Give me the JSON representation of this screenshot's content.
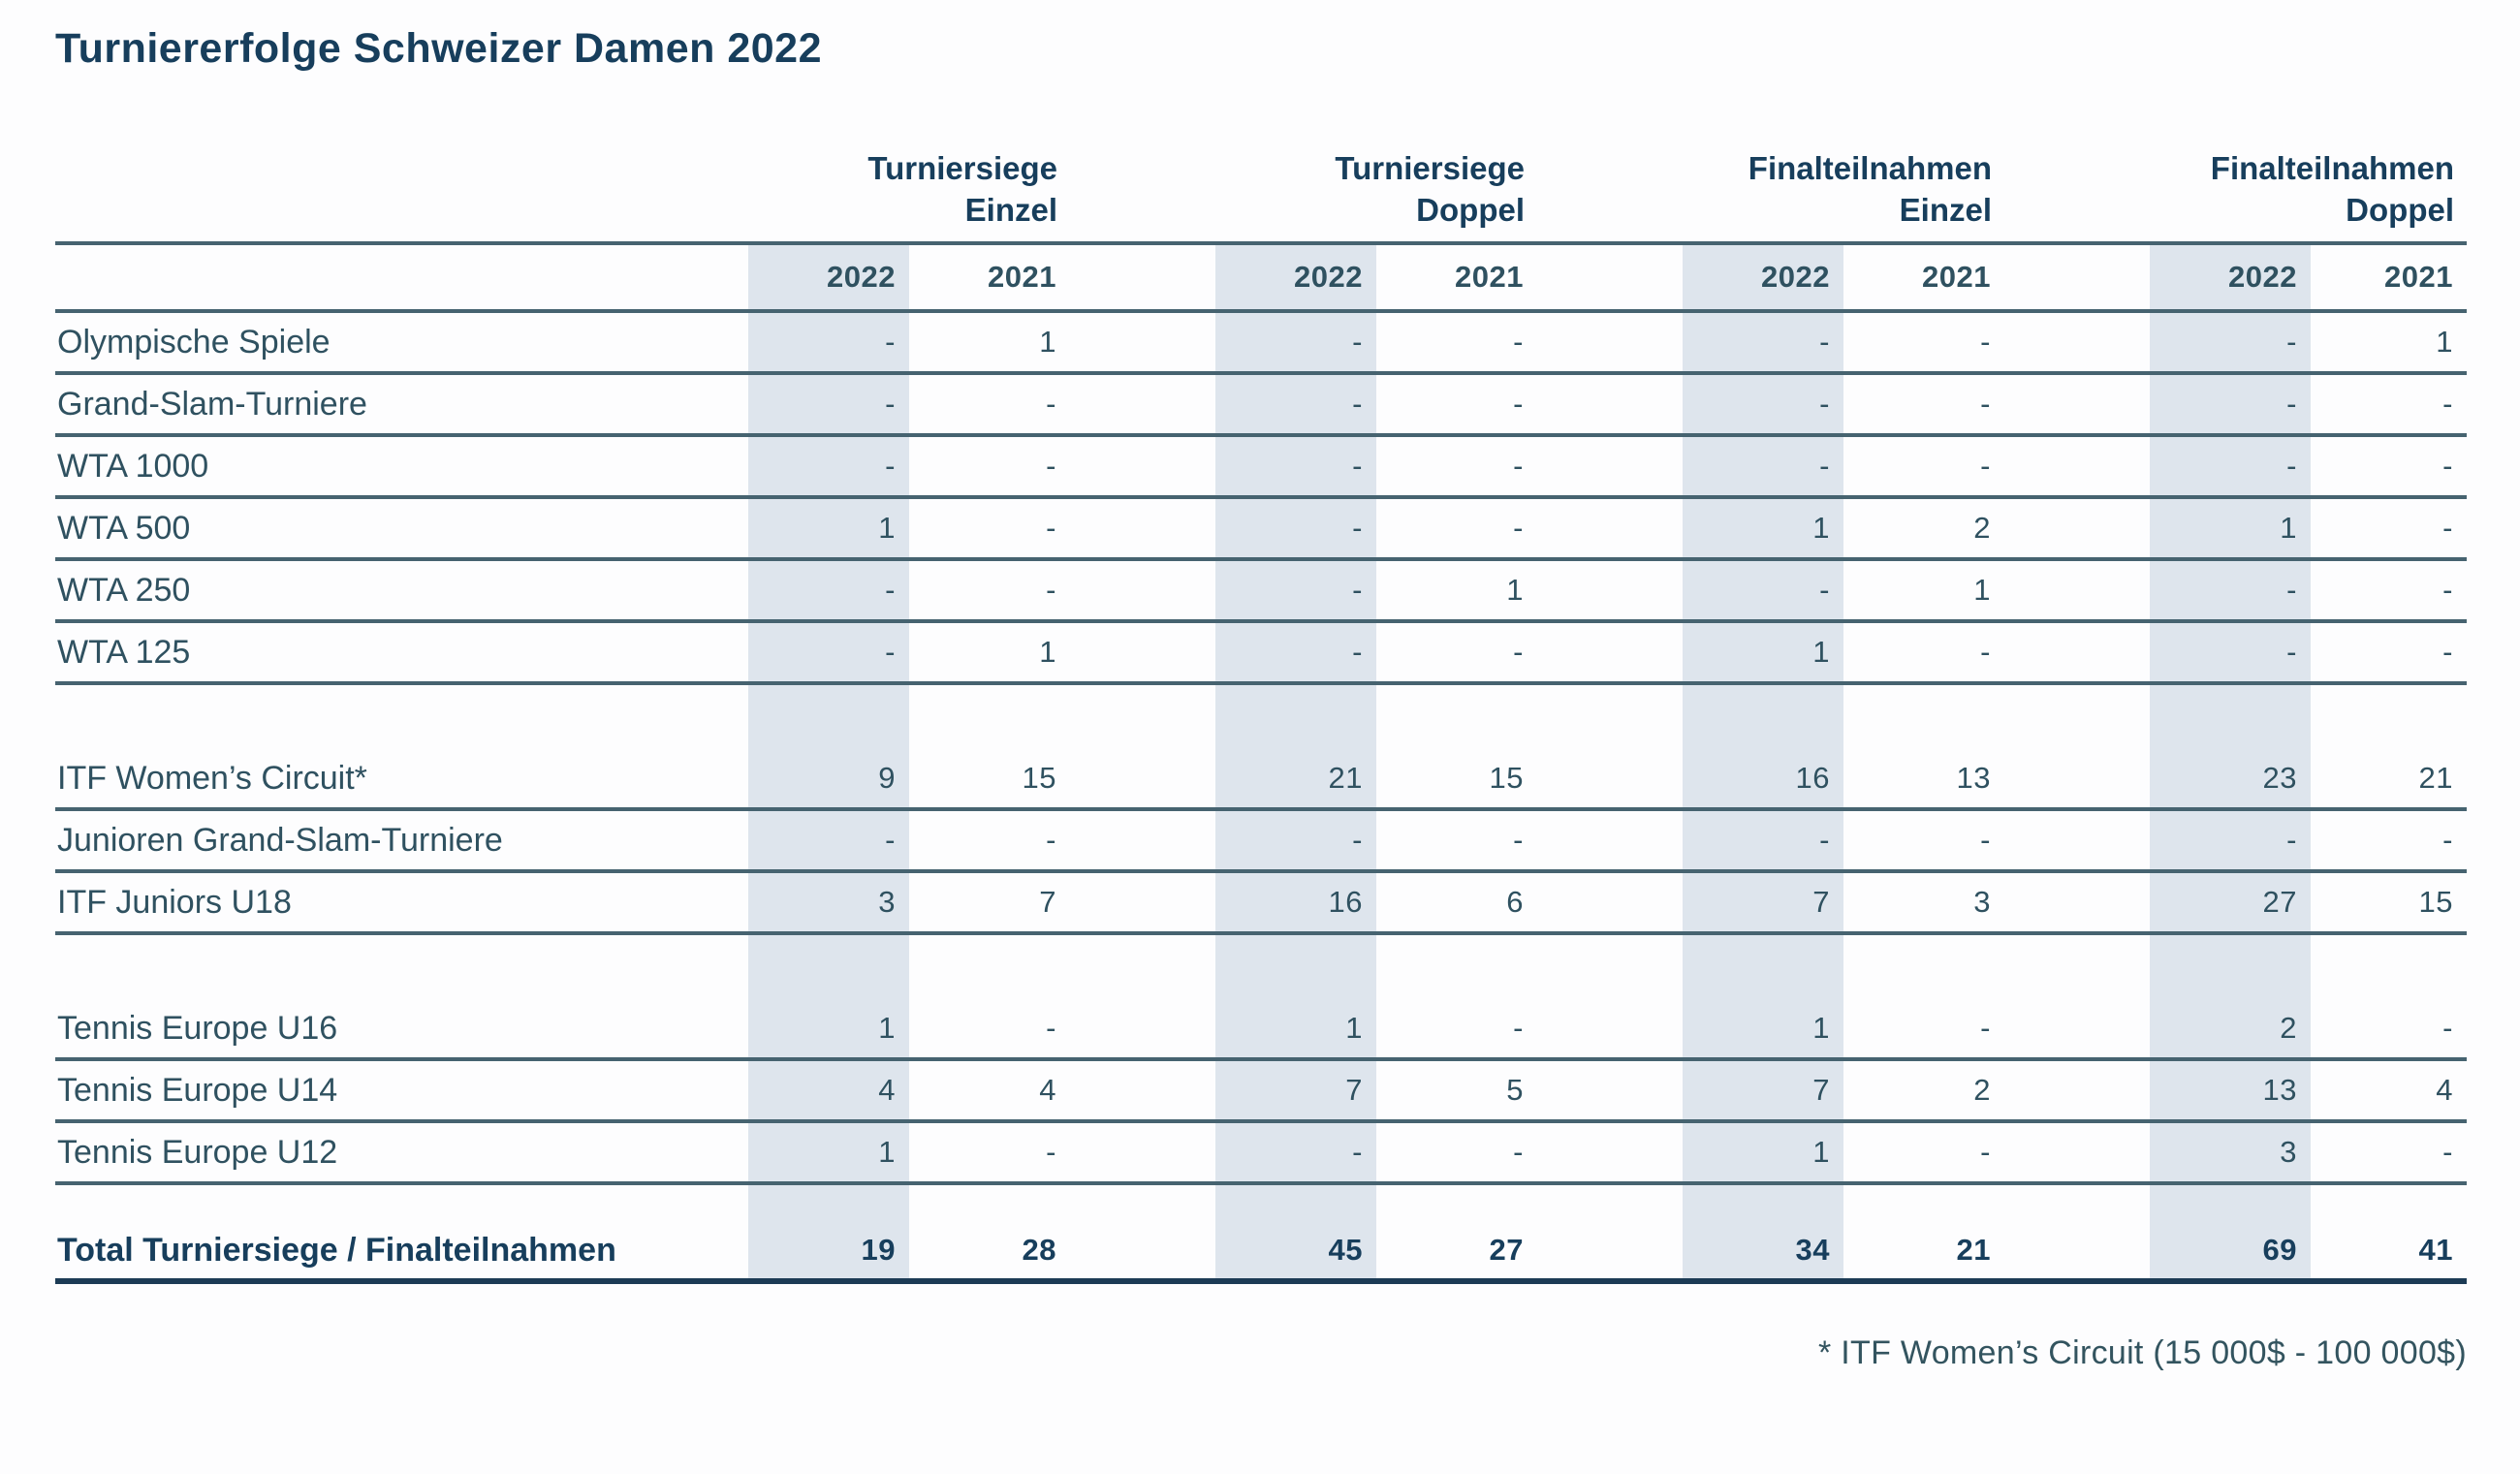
{
  "title": "Turniererfolge Schweizer Damen 2022",
  "colors": {
    "accent": "#173e5c",
    "text": "#2f5160",
    "rule_line": "#466370",
    "total_rule_line": "#1c3b55",
    "shaded_band": "#dee5ed",
    "background": "#fdfdfe"
  },
  "table": {
    "column_groups": [
      {
        "line1": "Turniersiege",
        "line2": "Einzel"
      },
      {
        "line1": "Turniersiege",
        "line2": "Doppel"
      },
      {
        "line1": "Finalteilnahmen",
        "line2": "Einzel"
      },
      {
        "line1": "Finalteilnahmen",
        "line2": "Doppel"
      }
    ],
    "year_headers": [
      "2022",
      "2021",
      "2022",
      "2021",
      "2022",
      "2021",
      "2022",
      "2021"
    ],
    "rows": [
      {
        "label": "Olympische Spiele",
        "values": [
          "-",
          "1",
          "-",
          "-",
          "-",
          "-",
          "-",
          "1"
        ]
      },
      {
        "label": "Grand-Slam-Turniere",
        "values": [
          "-",
          "-",
          "-",
          "-",
          "-",
          "-",
          "-",
          "-"
        ]
      },
      {
        "label": "WTA 1000",
        "values": [
          "-",
          "-",
          "-",
          "-",
          "-",
          "-",
          "-",
          "-"
        ]
      },
      {
        "label": "WTA 500",
        "values": [
          "1",
          "-",
          "-",
          "-",
          "1",
          "2",
          "1",
          "-"
        ]
      },
      {
        "label": "WTA 250",
        "values": [
          "-",
          "-",
          "-",
          "1",
          "-",
          "1",
          "-",
          "-"
        ]
      },
      {
        "label": "WTA 125",
        "values": [
          "-",
          "1",
          "-",
          "-",
          "1",
          "-",
          "-",
          "-"
        ]
      },
      {
        "label": "ITF Women’s Circuit*",
        "values": [
          "9",
          "15",
          "21",
          "15",
          "16",
          "13",
          "23",
          "21"
        ],
        "spacer_before": "tall"
      },
      {
        "label": "Junioren Grand-Slam-Turniere",
        "values": [
          "-",
          "-",
          "-",
          "-",
          "-",
          "-",
          "-",
          "-"
        ]
      },
      {
        "label": "ITF Juniors U18",
        "values": [
          "3",
          "7",
          "16",
          "6",
          "7",
          "3",
          "27",
          "15"
        ]
      },
      {
        "label": "Tennis Europe U16",
        "values": [
          "1",
          "-",
          "1",
          "-",
          "1",
          "-",
          "2",
          "-"
        ],
        "spacer_before": "tall"
      },
      {
        "label": "Tennis Europe U14",
        "values": [
          "4",
          "4",
          "7",
          "5",
          "7",
          "2",
          "13",
          "4"
        ]
      },
      {
        "label": "Tennis Europe U12",
        "values": [
          "1",
          "-",
          "-",
          "-",
          "1",
          "-",
          "3",
          "-"
        ]
      },
      {
        "label": "Total Turniersiege / Finalteilnahmen",
        "values": [
          "19",
          "28",
          "45",
          "27",
          "34",
          "21",
          "69",
          "41"
        ],
        "spacer_before": "short",
        "total": true
      }
    ]
  },
  "footnote": "* ITF Women’s Circuit (15 000$ - 100 000$)"
}
